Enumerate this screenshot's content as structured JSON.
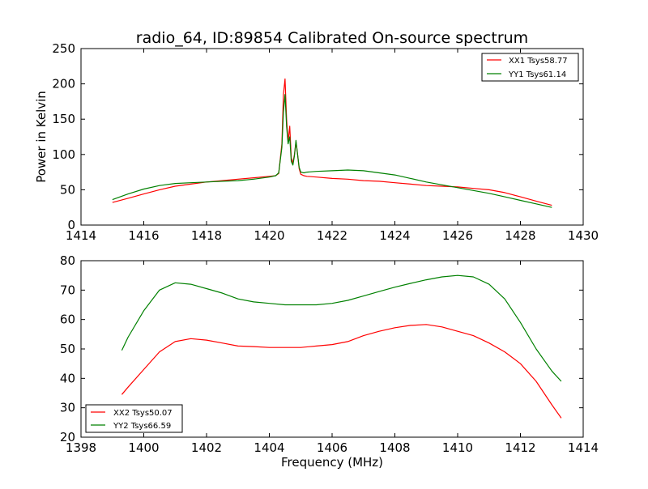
{
  "figure": {
    "title": "radio_64, ID:89854 Calibrated On-source spectrum"
  },
  "chart_data": [
    {
      "type": "line",
      "title": "radio_64, ID:89854 Calibrated On-source spectrum",
      "xlabel": "",
      "ylabel": "Power in Kelvin",
      "xlim": [
        1414,
        1430
      ],
      "ylim": [
        0,
        250
      ],
      "xticks": [
        "1414",
        "1416",
        "1418",
        "1420",
        "1422",
        "1424",
        "1426",
        "1428",
        "1430"
      ],
      "yticks": [
        "0",
        "50",
        "100",
        "150",
        "200",
        "250"
      ],
      "grid": false,
      "legend_position": "top-right",
      "series": [
        {
          "name": "XX1 Tsys58.77",
          "color": "#ff0000",
          "x": [
            1415,
            1415.5,
            1416,
            1416.5,
            1417,
            1417.5,
            1418,
            1418.5,
            1419,
            1419.5,
            1420,
            1420.2,
            1420.3,
            1420.4,
            1420.45,
            1420.5,
            1420.55,
            1420.6,
            1420.65,
            1420.7,
            1420.75,
            1420.8,
            1420.85,
            1420.9,
            1420.95,
            1421.0,
            1421.1,
            1421.2,
            1421.5,
            1422,
            1422.5,
            1423,
            1423.5,
            1424,
            1424.5,
            1425,
            1425.5,
            1426,
            1426.5,
            1427,
            1427.5,
            1428,
            1428.5,
            1429
          ],
          "values": [
            32,
            38,
            44,
            50,
            55,
            58,
            61,
            63,
            65,
            67,
            69,
            70,
            73,
            115,
            185,
            207,
            150,
            118,
            140,
            95,
            88,
            100,
            118,
            100,
            80,
            72,
            70,
            69,
            68,
            66,
            65,
            63,
            62,
            60,
            58,
            56,
            55,
            54,
            52,
            50,
            46,
            40,
            34,
            28
          ]
        },
        {
          "name": "YY1 Tsys61.14",
          "color": "#008000",
          "x": [
            1415,
            1415.5,
            1416,
            1416.5,
            1417,
            1417.5,
            1418,
            1418.5,
            1419,
            1419.5,
            1420,
            1420.2,
            1420.3,
            1420.4,
            1420.45,
            1420.5,
            1420.55,
            1420.6,
            1420.65,
            1420.7,
            1420.75,
            1420.8,
            1420.85,
            1420.9,
            1420.95,
            1421.0,
            1421.1,
            1421.2,
            1421.5,
            1422,
            1422.5,
            1423,
            1423.5,
            1424,
            1424.5,
            1425,
            1425.5,
            1426,
            1426.5,
            1427,
            1427.5,
            1428,
            1428.5,
            1429
          ],
          "values": [
            36,
            44,
            51,
            56,
            59,
            60,
            61,
            62,
            63,
            65,
            68,
            70,
            74,
            110,
            160,
            185,
            140,
            115,
            125,
            90,
            85,
            98,
            120,
            100,
            82,
            75,
            74,
            75,
            76,
            77,
            78,
            77,
            74,
            71,
            66,
            61,
            57,
            53,
            49,
            45,
            40,
            35,
            30,
            25
          ]
        }
      ]
    },
    {
      "type": "line",
      "title": "",
      "xlabel": "Frequency (MHz)",
      "ylabel": "",
      "xlim": [
        1398,
        1414
      ],
      "ylim": [
        20,
        80
      ],
      "xticks": [
        "1398",
        "1400",
        "1402",
        "1404",
        "1406",
        "1408",
        "1410",
        "1412",
        "1414"
      ],
      "yticks": [
        "20",
        "30",
        "40",
        "50",
        "60",
        "70",
        "80"
      ],
      "grid": false,
      "legend_position": "bottom-left",
      "series": [
        {
          "name": "XX2 Tsys50.07",
          "color": "#ff0000",
          "x": [
            1399.3,
            1399.5,
            1400,
            1400.5,
            1401,
            1401.5,
            1402,
            1402.5,
            1403,
            1403.5,
            1404,
            1404.5,
            1405,
            1405.5,
            1406,
            1406.5,
            1407,
            1407.5,
            1408,
            1408.5,
            1409,
            1409.5,
            1410,
            1410.5,
            1411,
            1411.5,
            1412,
            1412.5,
            1413,
            1413.3
          ],
          "values": [
            34.5,
            37,
            43,
            49,
            52.5,
            53.5,
            53,
            52,
            51,
            50.8,
            50.5,
            50.5,
            50.5,
            51,
            51.5,
            52.5,
            54.5,
            56,
            57.2,
            58,
            58.3,
            57.5,
            56,
            54.5,
            52,
            49,
            45,
            39,
            31,
            26.5
          ]
        },
        {
          "name": "YY2 Tsys66.59",
          "color": "#008000",
          "x": [
            1399.3,
            1399.5,
            1400,
            1400.5,
            1401,
            1401.5,
            1402,
            1402.5,
            1403,
            1403.5,
            1404,
            1404.5,
            1405,
            1405.5,
            1406,
            1406.5,
            1407,
            1407.5,
            1408,
            1408.5,
            1409,
            1409.5,
            1410,
            1410.5,
            1411,
            1411.5,
            1412,
            1412.5,
            1413,
            1413.3
          ],
          "values": [
            49.5,
            54,
            63,
            70,
            72.5,
            72,
            70.5,
            69,
            67,
            66,
            65.5,
            65,
            65,
            65,
            65.5,
            66.5,
            68,
            69.5,
            71,
            72.3,
            73.5,
            74.5,
            75,
            74.5,
            72,
            67,
            59,
            50,
            42.5,
            39
          ]
        }
      ]
    }
  ]
}
